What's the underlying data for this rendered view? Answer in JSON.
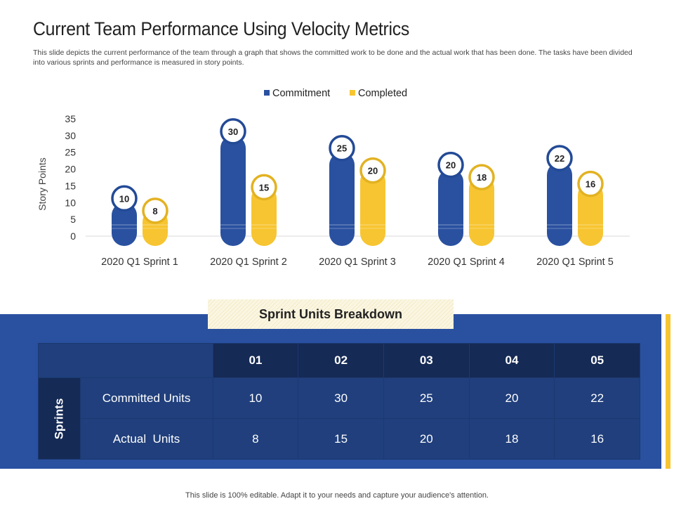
{
  "header": {
    "title": "Current Team Performance Using Velocity Metrics",
    "description": "This slide depicts the current performance of the team through a graph that shows the committed work to be done and the actual work that has been done. The tasks have been divided into various sprints and performance is measured in story points."
  },
  "chart_data": {
    "type": "bar",
    "categories": [
      "2020 Q1 Sprint 1",
      "2020 Q1 Sprint 2",
      "2020 Q1 Sprint 3",
      "2020 Q1 Sprint 4",
      "2020 Q1 Sprint 5"
    ],
    "series": [
      {
        "name": "Commitment",
        "values": [
          10,
          30,
          25,
          20,
          22
        ],
        "color": "#2a51a0"
      },
      {
        "name": "Completed",
        "values": [
          8,
          15,
          20,
          18,
          16
        ],
        "color": "#f7c531"
      }
    ],
    "ylabel": "Story Points",
    "ylim": [
      0,
      35
    ],
    "yticks": [
      0,
      5,
      10,
      15,
      20,
      25,
      30,
      35
    ],
    "legend": "top",
    "grid": false
  },
  "breakdown": {
    "title": "Sprint Units Breakdown",
    "side_label": "Sprints",
    "columns": [
      "01",
      "02",
      "03",
      "04",
      "05"
    ],
    "rows": [
      {
        "label": "Committed Units",
        "values": [
          "10",
          "30",
          "25",
          "20",
          "22"
        ]
      },
      {
        "label": "Actual  Units",
        "values": [
          "8",
          "15",
          "20",
          "18",
          "16"
        ]
      }
    ]
  },
  "footer": "This slide is 100% editable. Adapt it to your needs and capture your audience's attention."
}
